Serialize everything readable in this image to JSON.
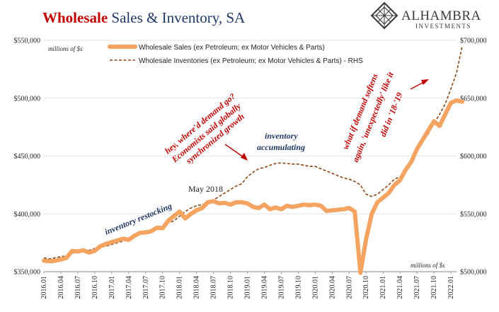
{
  "header": {
    "title_red": "Wholesale",
    "title_rest": " Sales & Inventory, SA"
  },
  "logo": {
    "name": "ALHAMBRA",
    "sub": "INVESTMENTS",
    "icon": "diamond-lattice-icon"
  },
  "colors": {
    "sales": "#f4a460",
    "inventory": "#8b4513",
    "title_red": "#c00000",
    "title_blue": "#1f3864",
    "annotation_red": "#c00000",
    "annotation_blue": "#1f3864"
  },
  "chart_data": {
    "type": "line",
    "units_left": "millions of $s",
    "units_right": "millions of $s",
    "left_axis": {
      "min": 350000,
      "max": 550000,
      "ticks": [
        "$350,000",
        "$400,000",
        "$450,000",
        "$500,000",
        "$550,000"
      ],
      "tick_values": [
        350000,
        400000,
        450000,
        500000,
        550000
      ]
    },
    "right_axis": {
      "min": 500000,
      "max": 700000,
      "ticks": [
        "$500,000",
        "$550,000",
        "$600,000",
        "$650,000",
        "$700,000"
      ],
      "tick_values": [
        500000,
        550000,
        600000,
        650000,
        700000
      ]
    },
    "x_ticks": [
      "2016.01",
      "2016.04",
      "2016.07",
      "2016.10",
      "2017.01",
      "2017.04",
      "2017.07",
      "2017.10",
      "2018.01",
      "2018.04",
      "2018.07",
      "2018.10",
      "2019.01",
      "2019.04",
      "2019.07",
      "2019.10",
      "2020.01",
      "2020.04",
      "2020.07",
      "2020.10",
      "2021.01",
      "2021.04",
      "2021.07",
      "2021.10",
      "2022.01"
    ],
    "months": 74,
    "series": [
      {
        "name": "Wholesale Sales (ex Petroleum; ex Motor Vehicles & Parts)",
        "axis": "left",
        "style": "solid-thick",
        "values": [
          359500,
          359000,
          359500,
          360500,
          362000,
          368000,
          367500,
          368500,
          366500,
          368000,
          372000,
          374000,
          375500,
          377000,
          378500,
          377500,
          381000,
          383500,
          384000,
          385000,
          388000,
          387500,
          394000,
          398000,
          402000,
          396000,
          400000,
          403000,
          405000,
          410000,
          411000,
          409000,
          409500,
          408000,
          410000,
          410000,
          409000,
          406000,
          405000,
          408000,
          404000,
          405500,
          404000,
          407000,
          406000,
          407000,
          408000,
          407500,
          408000,
          407000,
          402500,
          403000,
          403500,
          404000,
          405000,
          402000,
          349000,
          378000,
          400000,
          410000,
          414000,
          418000,
          425000,
          429000,
          438000,
          445000,
          456000,
          464000,
          472000,
          480000,
          476000,
          486000,
          496000,
          498000,
          497000
        ]
      },
      {
        "name": "Wholesale Inventories (ex Petroleum; ex Motor Vehicles & Parts) - RHS",
        "axis": "right",
        "style": "dashed",
        "values": [
          512000,
          511000,
          512000,
          513000,
          513500,
          516000,
          517000,
          518000,
          518500,
          520000,
          521000,
          522000,
          523500,
          525000,
          526500,
          528000,
          530000,
          532000,
          534000,
          536000,
          538000,
          540000,
          542000,
          544000,
          548000,
          552000,
          555000,
          557000,
          558000,
          560000,
          562000,
          565000,
          568000,
          571000,
          574000,
          576000,
          582000,
          586000,
          589000,
          590000,
          592000,
          593500,
          594000,
          593500,
          593000,
          593000,
          592000,
          591000,
          591000,
          589000,
          587000,
          585000,
          583000,
          581000,
          580000,
          578000,
          575000,
          567000,
          565000,
          567000,
          571000,
          575000,
          580000,
          582000,
          590000,
          596000,
          604000,
          612000,
          619000,
          628000,
          636000,
          645000,
          658000,
          672000,
          695000
        ]
      }
    ],
    "annotations": [
      {
        "text": "inventory restocking",
        "color": "blue"
      },
      {
        "text": "May 2018",
        "color": "black"
      },
      {
        "text": "hey, where'd demand go?",
        "color": "red"
      },
      {
        "text": "Economists said globally",
        "color": "red"
      },
      {
        "text": "synchronized growth",
        "color": "red"
      },
      {
        "text": "inventory",
        "color": "blue"
      },
      {
        "text": "accumulating",
        "color": "blue"
      },
      {
        "text": "what if demand softens",
        "color": "red"
      },
      {
        "text": "again, 'unexpectedly' like it",
        "color": "red"
      },
      {
        "text": "did in '18-'19",
        "color": "red"
      }
    ],
    "legend_position": "top-center",
    "grid": "horizontal"
  }
}
